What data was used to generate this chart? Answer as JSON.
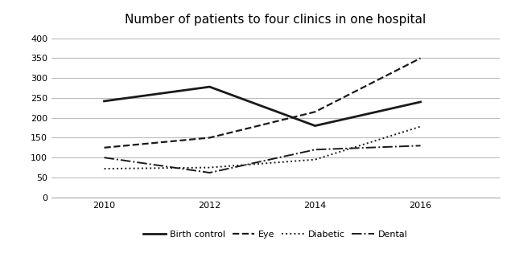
{
  "title": "Number of patients to four clinics in one hospital",
  "years": [
    2010,
    2012,
    2014,
    2016
  ],
  "series": {
    "Birth control": [
      242,
      278,
      180,
      240
    ],
    "Eye": [
      125,
      150,
      215,
      350
    ],
    "Diabetic": [
      72,
      75,
      95,
      178
    ],
    "Dental": [
      100,
      62,
      120,
      130
    ]
  },
  "styles": {
    "Birth control": {
      "color": "#1a1a1a",
      "linestyle": "-",
      "linewidth": 2.0
    },
    "Eye": {
      "color": "#1a1a1a",
      "linestyle": "--",
      "linewidth": 1.6
    },
    "Diabetic": {
      "color": "#1a1a1a",
      "linestyle": ":",
      "linewidth": 1.4
    },
    "Dental": {
      "color": "#1a1a1a",
      "linestyle": "-.",
      "linewidth": 1.4
    }
  },
  "ylim": [
    0,
    420
  ],
  "yticks": [
    0,
    50,
    100,
    150,
    200,
    250,
    300,
    350,
    400
  ],
  "xticks": [
    2010,
    2012,
    2014,
    2016
  ],
  "xlim": [
    2009.0,
    2017.5
  ],
  "background_color": "#ffffff",
  "grid_color": "#bbbbbb",
  "title_fontsize": 11,
  "tick_fontsize": 8
}
